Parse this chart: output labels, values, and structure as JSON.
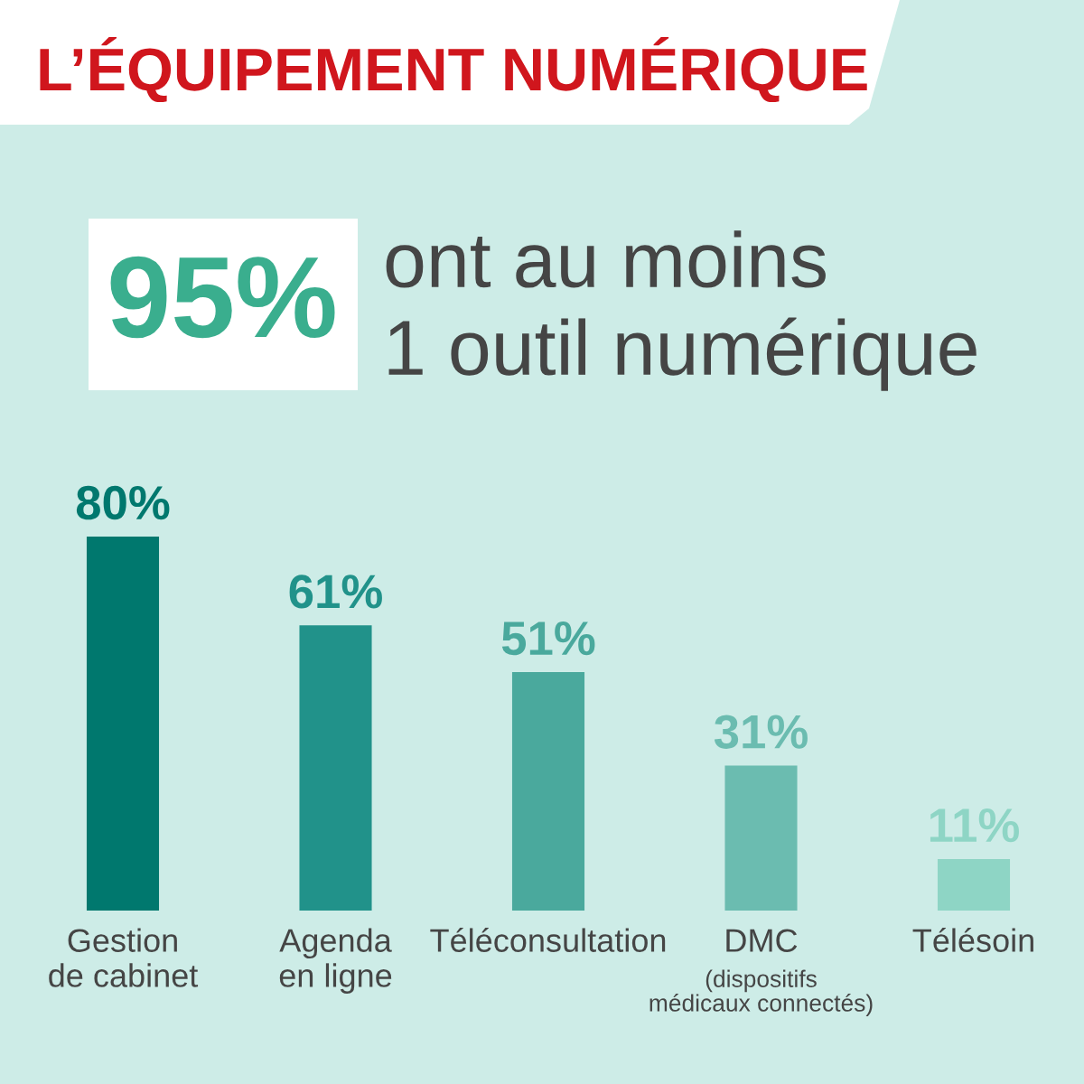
{
  "chart_data": {
    "type": "bar",
    "title": "L’ÉQUIPEMENT NUMÉRIQUE",
    "annotations": [
      "95%",
      "ont au moins\n1 outil numérique"
    ],
    "categories": [
      "Gestion\nde cabinet",
      "Agenda\nen ligne",
      "Téléconsultation",
      "DMC\n(dispositifs\nmédicaux connectés)",
      "Télésoin"
    ],
    "values": [
      80,
      61,
      51,
      31,
      11
    ],
    "colors": [
      "#00786e",
      "#21928a",
      "#4aa99d",
      "#6bbcb0",
      "#8ed5c5"
    ],
    "value_labels": [
      "80%",
      "61%",
      "51%",
      "31%",
      "11%"
    ]
  }
}
